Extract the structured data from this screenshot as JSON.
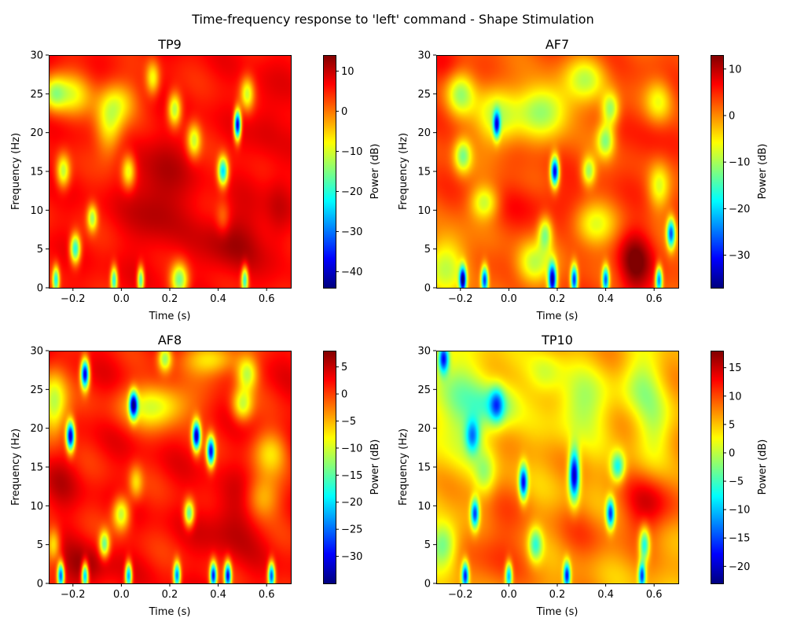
{
  "figure": {
    "title": "Time-frequency response to 'left' command - Shape Stimulation"
  },
  "colormap": "jet",
  "chart_data": [
    {
      "type": "heatmap",
      "title": "TP9",
      "xlabel": "Time (s)",
      "ylabel": "Frequency (Hz)",
      "colorbar_label": "Power (dB)",
      "xlim": [
        -0.3,
        0.7
      ],
      "ylim": [
        0,
        30
      ],
      "xticks": [
        -0.2,
        0.0,
        0.2,
        0.4,
        0.6
      ],
      "xtick_labels": [
        "−0.2",
        "0.0",
        "0.2",
        "0.4",
        "0.6"
      ],
      "yticks": [
        0,
        5,
        10,
        15,
        20,
        25,
        30
      ],
      "ytick_labels": [
        "0",
        "5",
        "10",
        "15",
        "20",
        "25",
        "30"
      ],
      "clim": [
        -44,
        14
      ],
      "cticks": [
        10,
        0,
        -10,
        -20,
        -30,
        -40
      ],
      "ctick_labels": [
        "10",
        "0",
        "−10",
        "−20",
        "−30",
        "−40"
      ],
      "base_level": 6,
      "features": [
        {
          "t": 0.15,
          "f": 12,
          "st": 0.08,
          "sf": 5,
          "a": 6
        },
        {
          "t": 0.45,
          "f": 6,
          "st": 0.08,
          "sf": 3,
          "a": 6
        },
        {
          "t": 0.6,
          "f": 22,
          "st": 0.05,
          "sf": 4,
          "a": 3
        },
        {
          "t": 0.65,
          "f": 10,
          "st": 0.04,
          "sf": 4,
          "a": 4
        },
        {
          "t": -0.22,
          "f": 25,
          "st": 0.07,
          "sf": 2,
          "a": -14
        },
        {
          "t": -0.28,
          "f": 25,
          "st": 0.03,
          "sf": 1.5,
          "a": -10
        },
        {
          "t": -0.05,
          "f": 21,
          "st": 0.04,
          "sf": 3,
          "a": -14
        },
        {
          "t": 0.0,
          "f": 24,
          "st": 0.05,
          "sf": 2,
          "a": -10
        },
        {
          "t": 0.13,
          "f": 27,
          "st": 0.02,
          "sf": 1.5,
          "a": -14
        },
        {
          "t": 0.22,
          "f": 23,
          "st": 0.02,
          "sf": 1.5,
          "a": -20
        },
        {
          "t": 0.3,
          "f": 19,
          "st": 0.02,
          "sf": 1.5,
          "a": -16
        },
        {
          "t": 0.52,
          "f": 25,
          "st": 0.02,
          "sf": 1.5,
          "a": -16
        },
        {
          "t": -0.24,
          "f": 15,
          "st": 0.02,
          "sf": 1.5,
          "a": -18
        },
        {
          "t": 0.03,
          "f": 15,
          "st": 0.02,
          "sf": 1.5,
          "a": -16
        },
        {
          "t": 0.42,
          "f": 15,
          "st": 0.015,
          "sf": 1.3,
          "a": -30
        },
        {
          "t": 0.48,
          "f": 21,
          "st": 0.01,
          "sf": 1.3,
          "a": -46
        },
        {
          "t": -0.12,
          "f": 9,
          "st": 0.015,
          "sf": 1.2,
          "a": -18
        },
        {
          "t": -0.19,
          "f": 5,
          "st": 0.015,
          "sf": 1.3,
          "a": -28
        },
        {
          "t": -0.27,
          "f": 1,
          "st": 0.01,
          "sf": 1.2,
          "a": -26
        },
        {
          "t": -0.03,
          "f": 1,
          "st": 0.01,
          "sf": 1.2,
          "a": -26
        },
        {
          "t": 0.08,
          "f": 1,
          "st": 0.01,
          "sf": 1.2,
          "a": -26
        },
        {
          "t": 0.24,
          "f": 1,
          "st": 0.025,
          "sf": 1.5,
          "a": -22
        },
        {
          "t": 0.51,
          "f": 1,
          "st": 0.01,
          "sf": 1.2,
          "a": -26
        },
        {
          "t": 0.42,
          "f": 9,
          "st": 0.02,
          "sf": 1.5,
          "a": -6
        }
      ]
    },
    {
      "type": "heatmap",
      "title": "AF7",
      "xlabel": "Time (s)",
      "ylabel": "Frequency (Hz)",
      "colorbar_label": "Power (dB)",
      "xlim": [
        -0.3,
        0.7
      ],
      "ylim": [
        0,
        30
      ],
      "xticks": [
        -0.2,
        0.0,
        0.2,
        0.4,
        0.6
      ],
      "xtick_labels": [
        "−0.2",
        "0.0",
        "0.2",
        "0.4",
        "0.6"
      ],
      "yticks": [
        0,
        5,
        10,
        15,
        20,
        25,
        30
      ],
      "ytick_labels": [
        "0",
        "5",
        "10",
        "15",
        "20",
        "25",
        "30"
      ],
      "clim": [
        -37,
        13
      ],
      "cticks": [
        10,
        0,
        -10,
        -20,
        -30
      ],
      "ctick_labels": [
        "10",
        "0",
        "−10",
        "−20",
        "−30"
      ],
      "base_level": 3,
      "features": [
        {
          "t": 0.52,
          "f": 3,
          "st": 0.05,
          "sf": 3,
          "a": 10
        },
        {
          "t": 0.15,
          "f": 11,
          "st": 0.15,
          "sf": 2,
          "a": 3
        },
        {
          "t": 0.6,
          "f": 20,
          "st": 0.06,
          "sf": 4,
          "a": 3
        },
        {
          "t": -0.25,
          "f": 29,
          "st": 0.05,
          "sf": 2,
          "a": 3
        },
        {
          "t": 0.15,
          "f": 23,
          "st": 0.08,
          "sf": 2.5,
          "a": -14
        },
        {
          "t": -0.05,
          "f": 22,
          "st": 0.06,
          "sf": 3,
          "a": -12
        },
        {
          "t": -0.2,
          "f": 25,
          "st": 0.04,
          "sf": 2,
          "a": -12
        },
        {
          "t": 0.32,
          "f": 27,
          "st": 0.06,
          "sf": 2,
          "a": -10
        },
        {
          "t": 0.4,
          "f": 19,
          "st": 0.025,
          "sf": 1.5,
          "a": -14
        },
        {
          "t": 0.42,
          "f": 23,
          "st": 0.025,
          "sf": 1.5,
          "a": -14
        },
        {
          "t": -0.19,
          "f": 17,
          "st": 0.025,
          "sf": 1.5,
          "a": -14
        },
        {
          "t": -0.1,
          "f": 11,
          "st": 0.04,
          "sf": 1.5,
          "a": -12
        },
        {
          "t": -0.05,
          "f": 21,
          "st": 0.01,
          "sf": 1.2,
          "a": -25
        },
        {
          "t": 0.19,
          "f": 15,
          "st": 0.012,
          "sf": 1.3,
          "a": -36
        },
        {
          "t": 0.33,
          "f": 15,
          "st": 0.02,
          "sf": 1.3,
          "a": -14
        },
        {
          "t": 0.15,
          "f": 7,
          "st": 0.02,
          "sf": 1.5,
          "a": -14
        },
        {
          "t": 0.35,
          "f": 8,
          "st": 0.06,
          "sf": 2,
          "a": -10
        },
        {
          "t": 0.1,
          "f": 3,
          "st": 0.05,
          "sf": 2,
          "a": -12
        },
        {
          "t": 0.62,
          "f": 13,
          "st": 0.03,
          "sf": 2,
          "a": -10
        },
        {
          "t": 0.67,
          "f": 7,
          "st": 0.012,
          "sf": 1.3,
          "a": -28
        },
        {
          "t": -0.25,
          "f": 3,
          "st": 0.06,
          "sf": 3,
          "a": -12
        },
        {
          "t": -0.19,
          "f": 1,
          "st": 0.01,
          "sf": 1.2,
          "a": -36
        },
        {
          "t": -0.1,
          "f": 1,
          "st": 0.01,
          "sf": 1.2,
          "a": -30
        },
        {
          "t": 0.18,
          "f": 1,
          "st": 0.012,
          "sf": 1.5,
          "a": -36
        },
        {
          "t": 0.27,
          "f": 1,
          "st": 0.01,
          "sf": 1.3,
          "a": -32
        },
        {
          "t": 0.4,
          "f": 1,
          "st": 0.01,
          "sf": 1.2,
          "a": -28
        },
        {
          "t": 0.62,
          "f": 1,
          "st": 0.01,
          "sf": 1.2,
          "a": -28
        },
        {
          "t": 0.62,
          "f": 24,
          "st": 0.04,
          "sf": 2,
          "a": -10
        }
      ]
    },
    {
      "type": "heatmap",
      "title": "AF8",
      "xlabel": "Time (s)",
      "ylabel": "Frequency (Hz)",
      "colorbar_label": "Power (dB)",
      "xlim": [
        -0.3,
        0.7
      ],
      "ylim": [
        0,
        30
      ],
      "xticks": [
        -0.2,
        0.0,
        0.2,
        0.4,
        0.6
      ],
      "xtick_labels": [
        "−0.2",
        "0.0",
        "0.2",
        "0.4",
        "0.6"
      ],
      "yticks": [
        0,
        5,
        10,
        15,
        20,
        25,
        30
      ],
      "ytick_labels": [
        "0",
        "5",
        "10",
        "15",
        "20",
        "25",
        "30"
      ],
      "clim": [
        -35,
        8
      ],
      "cticks": [
        5,
        0,
        -5,
        -10,
        -15,
        -20,
        -25,
        -30
      ],
      "ctick_labels": [
        "5",
        "0",
        "−5",
        "−10",
        "−15",
        "−20",
        "−25",
        "−30"
      ],
      "base_level": 2,
      "features": [
        {
          "t": -0.15,
          "f": 2,
          "st": 0.08,
          "sf": 2,
          "a": 4
        },
        {
          "t": 0.45,
          "f": 8,
          "st": 0.08,
          "sf": 3,
          "a": 4
        },
        {
          "t": -0.25,
          "f": 13,
          "st": 0.05,
          "sf": 3,
          "a": 2
        },
        {
          "t": 0.15,
          "f": 23,
          "st": 0.1,
          "sf": 2,
          "a": -12
        },
        {
          "t": 0.38,
          "f": 29,
          "st": 0.08,
          "sf": 1.5,
          "a": -10
        },
        {
          "t": 0.5,
          "f": 23,
          "st": 0.03,
          "sf": 1.5,
          "a": -12
        },
        {
          "t": 0.52,
          "f": 27,
          "st": 0.03,
          "sf": 1.5,
          "a": -12
        },
        {
          "t": -0.28,
          "f": 23,
          "st": 0.04,
          "sf": 3,
          "a": -14
        },
        {
          "t": 0.05,
          "f": 23,
          "st": 0.012,
          "sf": 1.2,
          "a": -30
        },
        {
          "t": -0.15,
          "f": 27,
          "st": 0.012,
          "sf": 1.3,
          "a": -33
        },
        {
          "t": -0.21,
          "f": 19,
          "st": 0.012,
          "sf": 1.3,
          "a": -33
        },
        {
          "t": 0.31,
          "f": 19,
          "st": 0.012,
          "sf": 1.3,
          "a": -33
        },
        {
          "t": 0.37,
          "f": 17,
          "st": 0.012,
          "sf": 1.3,
          "a": -30
        },
        {
          "t": 0.18,
          "f": 29,
          "st": 0.02,
          "sf": 1.2,
          "a": -14
        },
        {
          "t": 0.0,
          "f": 9,
          "st": 0.025,
          "sf": 1.5,
          "a": -14
        },
        {
          "t": 0.28,
          "f": 9,
          "st": 0.015,
          "sf": 1.2,
          "a": -18
        },
        {
          "t": -0.07,
          "f": 5,
          "st": 0.015,
          "sf": 1.2,
          "a": -16
        },
        {
          "t": 0.06,
          "f": 13,
          "st": 0.02,
          "sf": 1.5,
          "a": -8
        },
        {
          "t": 0.58,
          "f": 11,
          "st": 0.05,
          "sf": 2,
          "a": -8
        },
        {
          "t": 0.62,
          "f": 17,
          "st": 0.05,
          "sf": 2,
          "a": -8
        },
        {
          "t": -0.25,
          "f": 1,
          "st": 0.01,
          "sf": 1.2,
          "a": -28
        },
        {
          "t": -0.15,
          "f": 1,
          "st": 0.01,
          "sf": 1.2,
          "a": -26
        },
        {
          "t": 0.03,
          "f": 1,
          "st": 0.01,
          "sf": 1.2,
          "a": -26
        },
        {
          "t": 0.23,
          "f": 1,
          "st": 0.01,
          "sf": 1.2,
          "a": -26
        },
        {
          "t": 0.38,
          "f": 1,
          "st": 0.01,
          "sf": 1.2,
          "a": -30
        },
        {
          "t": 0.44,
          "f": 1,
          "st": 0.01,
          "sf": 1.2,
          "a": -30
        },
        {
          "t": 0.62,
          "f": 1,
          "st": 0.01,
          "sf": 1.2,
          "a": -28
        },
        {
          "t": -0.28,
          "f": 5,
          "st": 0.02,
          "sf": 1.5,
          "a": -10
        }
      ]
    },
    {
      "type": "heatmap",
      "title": "TP10",
      "xlabel": "Time (s)",
      "ylabel": "Frequency (Hz)",
      "colorbar_label": "Power (dB)",
      "xlim": [
        -0.3,
        0.7
      ],
      "ylim": [
        0,
        30
      ],
      "xticks": [
        -0.2,
        0.0,
        0.2,
        0.4,
        0.6
      ],
      "xtick_labels": [
        "−0.2",
        "0.0",
        "0.2",
        "0.4",
        "0.6"
      ],
      "yticks": [
        0,
        5,
        10,
        15,
        20,
        25,
        30
      ],
      "ytick_labels": [
        "0",
        "5",
        "10",
        "15",
        "20",
        "25",
        "30"
      ],
      "clim": [
        -23,
        18
      ],
      "cticks": [
        15,
        10,
        5,
        0,
        -5,
        -10,
        -15,
        -20
      ],
      "ctick_labels": [
        "15",
        "10",
        "5",
        "0",
        "−5",
        "−10",
        "−15",
        "−20"
      ],
      "base_level": 6,
      "features": [
        {
          "t": 0.58,
          "f": 10,
          "st": 0.08,
          "sf": 3,
          "a": 8
        },
        {
          "t": -0.05,
          "f": 5,
          "st": 0.08,
          "sf": 5,
          "a": 5
        },
        {
          "t": 0.3,
          "f": 6,
          "st": 0.1,
          "sf": 3,
          "a": 3
        },
        {
          "t": -0.2,
          "f": 23,
          "st": 0.1,
          "sf": 5,
          "a": -8
        },
        {
          "t": -0.05,
          "f": 23,
          "st": 0.06,
          "sf": 2,
          "a": -8
        },
        {
          "t": 0.3,
          "f": 23,
          "st": 0.08,
          "sf": 3,
          "a": -7
        },
        {
          "t": 0.55,
          "f": 26,
          "st": 0.06,
          "sf": 3,
          "a": -6
        },
        {
          "t": 0.15,
          "f": 27,
          "st": 0.05,
          "sf": 2,
          "a": -5
        },
        {
          "t": -0.27,
          "f": 29,
          "st": 0.015,
          "sf": 1.3,
          "a": -22
        },
        {
          "t": -0.15,
          "f": 19,
          "st": 0.02,
          "sf": 1.5,
          "a": -14
        },
        {
          "t": -0.05,
          "f": 23,
          "st": 0.02,
          "sf": 1.5,
          "a": -12
        },
        {
          "t": 0.06,
          "f": 13,
          "st": 0.012,
          "sf": 1.5,
          "a": -24
        },
        {
          "t": 0.27,
          "f": 14,
          "st": 0.015,
          "sf": 2.2,
          "a": -28
        },
        {
          "t": -0.14,
          "f": 9,
          "st": 0.012,
          "sf": 1.3,
          "a": -22
        },
        {
          "t": 0.42,
          "f": 9,
          "st": 0.012,
          "sf": 1.3,
          "a": -22
        },
        {
          "t": 0.45,
          "f": 15,
          "st": 0.02,
          "sf": 1.3,
          "a": -14
        },
        {
          "t": 0.11,
          "f": 5,
          "st": 0.02,
          "sf": 1.5,
          "a": -12
        },
        {
          "t": 0.56,
          "f": 5,
          "st": 0.015,
          "sf": 1.5,
          "a": -16
        },
        {
          "t": -0.27,
          "f": 5,
          "st": 0.04,
          "sf": 2,
          "a": -10
        },
        {
          "t": -0.18,
          "f": 1,
          "st": 0.01,
          "sf": 1.2,
          "a": -24
        },
        {
          "t": 0.0,
          "f": 1,
          "st": 0.01,
          "sf": 1.2,
          "a": -20
        },
        {
          "t": 0.24,
          "f": 1,
          "st": 0.01,
          "sf": 1.2,
          "a": -24
        },
        {
          "t": 0.55,
          "f": 1,
          "st": 0.01,
          "sf": 1.2,
          "a": -22
        },
        {
          "t": -0.1,
          "f": 14,
          "st": 0.03,
          "sf": 2,
          "a": -6
        },
        {
          "t": 0.6,
          "f": 20,
          "st": 0.05,
          "sf": 3,
          "a": -5
        }
      ]
    }
  ]
}
